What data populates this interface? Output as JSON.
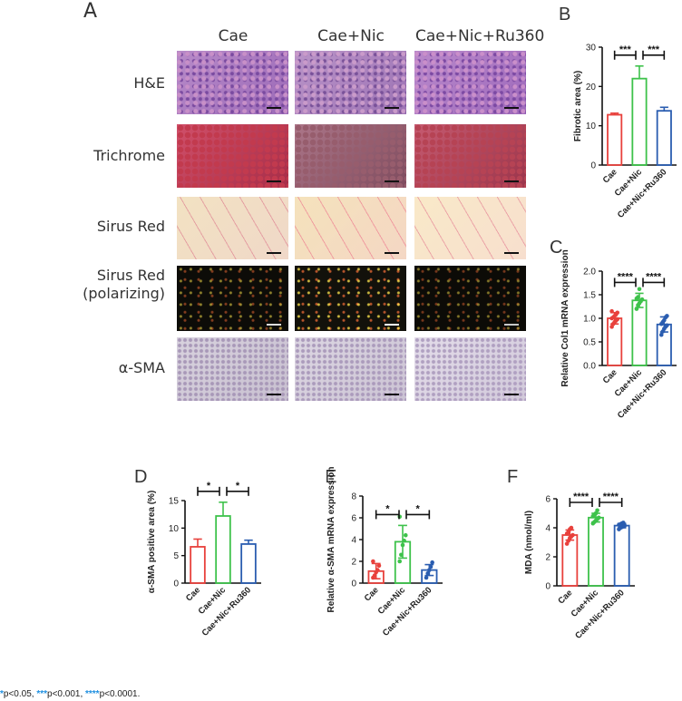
{
  "colors": {
    "cae": "#e8413c",
    "nic": "#3ec24b",
    "ru360": "#2a5db0"
  },
  "histology": {
    "panel": "A",
    "columns": [
      "Cae",
      "Cae+Nic",
      "Cae+Nic+Ru360"
    ],
    "rows": [
      {
        "label": "H&E",
        "label2": "",
        "stain": "he"
      },
      {
        "label": "Trichrome",
        "label2": "",
        "stain": "trichrome"
      },
      {
        "label": "Sirus Red",
        "label2": "",
        "stain": "sirius"
      },
      {
        "label": "Sirus Red",
        "label2": "(polarizing)",
        "stain": "polar"
      },
      {
        "label": "α-SMA",
        "label2": "",
        "stain": "sma"
      }
    ]
  },
  "chart_data": [
    {
      "panel": "B",
      "type": "bar",
      "ylabel": "Fibrotic area (%)",
      "ylim": [
        0,
        30
      ],
      "yticks": [
        0,
        10,
        20,
        30
      ],
      "categories": [
        "Cae",
        "Cae+Nic",
        "Cae+Nic+Ru360"
      ],
      "values": [
        12.8,
        22,
        13.8
      ],
      "errors": [
        0.4,
        3.2,
        0.9
      ],
      "points": [],
      "significance": [
        "***",
        "***"
      ]
    },
    {
      "panel": "C",
      "type": "bar",
      "ylabel": "Relative Col1 mRNA expression",
      "ylim": [
        0,
        2.0
      ],
      "yticks": [
        0.0,
        0.5,
        1.0,
        1.5,
        2.0
      ],
      "categories": [
        "Cae",
        "Cae+Nic",
        "Cae+Nic+Ru360"
      ],
      "values": [
        1.0,
        1.38,
        0.87
      ],
      "errors": [
        0.12,
        0.15,
        0.16
      ],
      "points": [
        [
          0.82,
          0.88,
          0.92,
          0.95,
          0.98,
          1.0,
          1.02,
          1.05,
          1.08,
          1.12,
          1.15
        ],
        [
          1.2,
          1.28,
          1.32,
          1.36,
          1.4,
          1.42,
          1.45,
          1.62
        ],
        [
          0.65,
          0.72,
          0.78,
          0.82,
          0.85,
          0.88,
          0.92,
          0.96,
          1.02,
          1.05
        ]
      ],
      "significance": [
        "****",
        "****"
      ]
    },
    {
      "panel": "D",
      "type": "bar",
      "ylabel": "α-SMA positive area (%)",
      "ylim": [
        0,
        15
      ],
      "yticks": [
        0,
        5,
        10,
        15
      ],
      "categories": [
        "Cae",
        "Cae+Nic",
        "Cae+Nic+Ru360"
      ],
      "values": [
        6.6,
        12.2,
        7.1
      ],
      "errors": [
        1.4,
        2.5,
        0.7
      ],
      "points": [],
      "significance": [
        "*",
        "*"
      ]
    },
    {
      "panel": "E",
      "type": "bar",
      "ylabel": "Relative α-SMA mRNA expression",
      "ylim": [
        0,
        8
      ],
      "yticks": [
        0,
        2,
        4,
        6,
        8
      ],
      "categories": [
        "Cae",
        "Cae+Nic",
        "Cae+Nic+Ru360"
      ],
      "values": [
        1.1,
        3.8,
        1.2
      ],
      "errors": [
        0.7,
        1.5,
        0.5
      ],
      "points": [
        [
          0.5,
          0.7,
          1.0,
          1.2,
          1.6,
          2.0
        ],
        [
          2.0,
          2.6,
          3.5,
          3.9,
          4.4,
          6.1
        ],
        [
          0.5,
          0.9,
          1.2,
          1.5,
          1.9
        ]
      ],
      "significance": [
        "*",
        "*"
      ]
    },
    {
      "panel": "F",
      "type": "bar",
      "ylabel": "MDA (nmol/ml)",
      "ylim": [
        0,
        6
      ],
      "yticks": [
        0,
        2,
        4,
        6
      ],
      "categories": [
        "Cae",
        "Cae+Nic",
        "Cae+Nic+Ru360"
      ],
      "values": [
        3.5,
        4.7,
        4.15
      ],
      "errors": [
        0.35,
        0.3,
        0.15
      ],
      "points": [
        [
          2.9,
          3.1,
          3.3,
          3.4,
          3.5,
          3.6,
          3.7,
          3.9,
          4.0
        ],
        [
          4.3,
          4.4,
          4.5,
          4.6,
          4.7,
          4.8,
          4.9,
          5.0,
          5.2
        ],
        [
          3.9,
          4.0,
          4.05,
          4.1,
          4.15,
          4.2,
          4.25,
          4.3,
          4.35
        ]
      ],
      "significance": [
        "****",
        "****"
      ]
    }
  ],
  "footnote": {
    "s1": "*",
    "t1": "p<0.05, ",
    "s2": "***",
    "t2": "p<0.001, ",
    "s3": "****",
    "t3": "p<0.0001."
  }
}
